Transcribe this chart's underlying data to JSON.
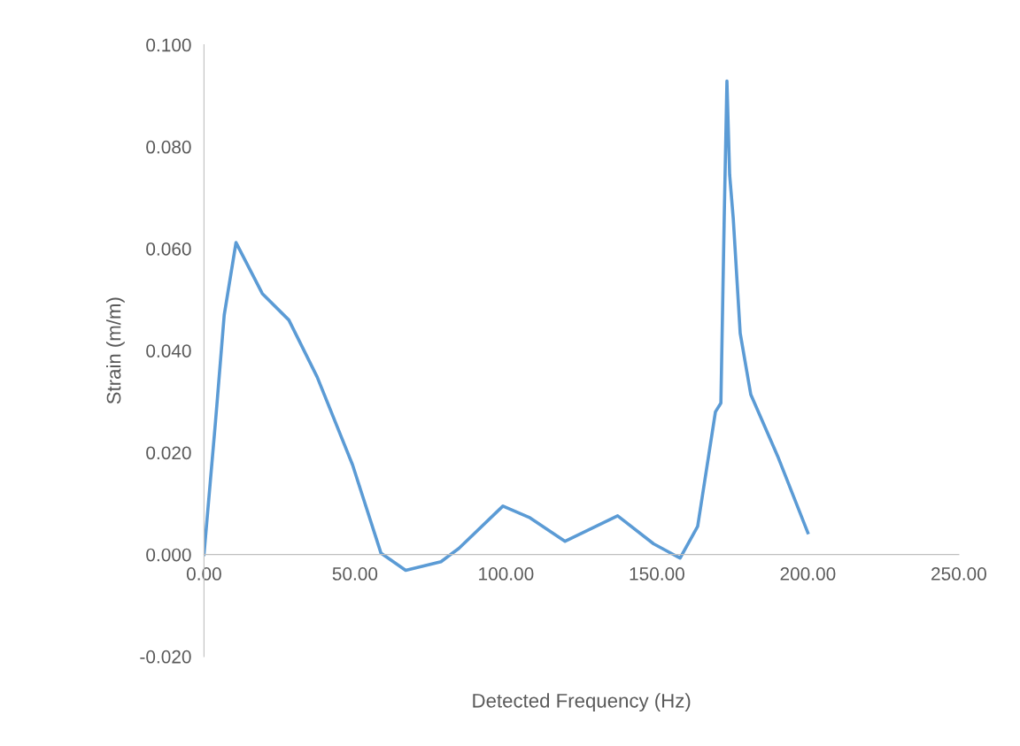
{
  "chart_data": {
    "type": "line",
    "xlabel": "Detected Frequency (Hz)",
    "ylabel": "Strain (m/m)",
    "x": [
      0,
      3.8,
      6.7,
      10.6,
      19.3,
      28.1,
      37.5,
      49.2,
      58.6,
      66.8,
      78.5,
      84.4,
      99,
      108,
      119.6,
      137,
      148.9,
      157.7,
      163.5,
      169.4,
      171.2,
      172.3,
      173.2,
      174.1,
      175.3,
      177.6,
      181.1,
      190,
      200
    ],
    "series": [
      {
        "color": "#5b9bd5",
        "values": [
          0,
          0.026,
          0.047,
          0.0612,
          0.0512,
          0.046,
          0.0348,
          0.0176,
          0.0003,
          -0.0031,
          -0.0014,
          0.0012,
          0.0095,
          0.0072,
          0.0026,
          0.0076,
          0.0021,
          -0.0007,
          0.0055,
          0.028,
          0.0297,
          0.0659,
          0.0929,
          0.0745,
          0.0659,
          0.0434,
          0.0314,
          0.0193,
          0.0043
        ]
      }
    ],
    "xlim": [
      0,
      250
    ],
    "ylim": [
      -0.02,
      0.1
    ],
    "xticks": [
      {
        "value": 0,
        "label": "0.00"
      },
      {
        "value": 50,
        "label": "50.00"
      },
      {
        "value": 100,
        "label": "100.00"
      },
      {
        "value": 150,
        "label": "150.00"
      },
      {
        "value": 200,
        "label": "200.00"
      },
      {
        "value": 250,
        "label": "250.00"
      }
    ],
    "yticks": [
      {
        "value": -0.02,
        "label": "-0.020"
      },
      {
        "value": 0,
        "label": "0.000"
      },
      {
        "value": 0.02,
        "label": "0.020"
      },
      {
        "value": 0.04,
        "label": "0.040"
      },
      {
        "value": 0.06,
        "label": "0.060"
      },
      {
        "value": 0.08,
        "label": "0.080"
      },
      {
        "value": 0.1,
        "label": "0.100"
      }
    ],
    "grid": false,
    "legend": false,
    "marker": "none",
    "line_style": "solid"
  }
}
